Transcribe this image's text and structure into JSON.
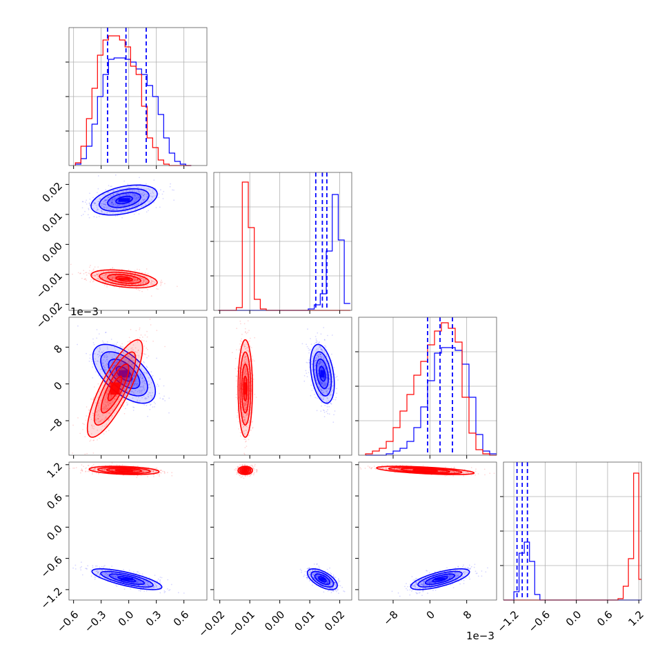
{
  "chart_data": {
    "type": "corner",
    "grid": true,
    "series": [
      {
        "color": "#0000ff"
      },
      {
        "color": "#ff0000"
      }
    ],
    "axes": [
      {
        "range": [
          -0.65,
          0.85
        ],
        "ticks": [
          -0.6,
          -0.3,
          0.0,
          0.3,
          0.6
        ],
        "tick_labels": [
          "−0.6",
          "−0.3",
          "0.0",
          "0.3",
          "0.6"
        ],
        "offset_label": ""
      },
      {
        "range": [
          -0.022,
          0.024
        ],
        "ticks": [
          -0.02,
          -0.01,
          0.0,
          0.01,
          0.02
        ],
        "tick_labels": [
          "−0.02",
          "−0.01",
          "0.00",
          "0.01",
          "0.02"
        ],
        "offset_label": ""
      },
      {
        "range": [
          -15.5,
          14.5
        ],
        "ticks": [
          -8,
          0,
          8
        ],
        "tick_labels": [
          "−8",
          "0",
          "8"
        ],
        "offset_label": "1e−3"
      },
      {
        "range": [
          -1.4,
          1.25
        ],
        "ticks": [
          -1.2,
          -0.6,
          0.0,
          0.6,
          1.2
        ],
        "tick_labels": [
          "−1.2",
          "−0.6",
          "0.0",
          "0.6",
          "1.2"
        ],
        "offset_label": ""
      }
    ],
    "quantiles_series0": [
      [
        -0.23,
        -0.03,
        0.19
      ],
      [
        0.012,
        0.0142,
        0.0157
      ],
      [
        -0.5,
        2.2,
        4.9
      ],
      [
        -1.14,
        -1.04,
        -0.94
      ]
    ],
    "marginals": [
      {
        "bins": [
          -0.58,
          -0.52,
          -0.46,
          -0.4,
          -0.34,
          -0.28,
          -0.22,
          -0.16,
          -0.1,
          -0.04,
          0.02,
          0.08,
          0.14,
          0.2,
          0.26,
          0.32,
          0.38,
          0.44,
          0.5,
          0.56,
          0.62,
          0.68
        ],
        "counts": [
          [
            1,
            5,
            14,
            30,
            50,
            66,
            77,
            78,
            78,
            77,
            75,
            70,
            66,
            58,
            50,
            37,
            20,
            9,
            3,
            1,
            0
          ],
          [
            2,
            14,
            34,
            56,
            80,
            91,
            94,
            94,
            91,
            86,
            72,
            66,
            43,
            20,
            13,
            4,
            1,
            0,
            0,
            0,
            0
          ]
        ],
        "ylim": [
          0,
          100
        ]
      },
      {
        "bins": [
          -0.0205,
          -0.0185,
          -0.0165,
          -0.0145,
          -0.0125,
          -0.0105,
          -0.0085,
          -0.0065,
          -0.0045,
          -0.0025,
          -0.0005,
          0.0015,
          0.0035,
          0.0055,
          0.0075,
          0.0095,
          0.0115,
          0.0135,
          0.0155,
          0.0175,
          0.0195,
          0.0215,
          0.0235
        ],
        "counts": [
          [
            0,
            0,
            0,
            0,
            0,
            0,
            0,
            0,
            0,
            0,
            0,
            0,
            0,
            0,
            0,
            1,
            4,
            12,
            43,
            84,
            51,
            5
          ],
          [
            0,
            0,
            0,
            2,
            93,
            60,
            8,
            1,
            0,
            0,
            0,
            0,
            0,
            0,
            0,
            0,
            0,
            0,
            0,
            0,
            0,
            0
          ]
        ],
        "ylim": [
          0,
          100
        ]
      },
      {
        "bins": [
          -14,
          -12.5,
          -11,
          -9.5,
          -8,
          -6.5,
          -5,
          -3.5,
          -2,
          -0.5,
          1,
          2.5,
          4,
          5.5,
          7,
          8.5,
          10,
          11.5,
          13,
          14.5
        ],
        "counts": [
          [
            0,
            0,
            0,
            1,
            3,
            5,
            10,
            20,
            35,
            54,
            74,
            78,
            78,
            76,
            66,
            42,
            15,
            3,
            1
          ],
          [
            1,
            3,
            5,
            10,
            20,
            32,
            44,
            58,
            68,
            80,
            90,
            96,
            92,
            82,
            42,
            16,
            4,
            1,
            0
          ]
        ],
        "ylim": [
          0,
          100
        ]
      },
      {
        "bins": [
          -1.4,
          -1.3,
          -1.2,
          -1.1,
          -1.0,
          -0.9,
          -0.8,
          -0.7,
          -0.6,
          -0.5,
          -0.4,
          -0.3,
          -0.2,
          -0.1,
          0.0,
          0.1,
          0.2,
          0.3,
          0.4,
          0.5,
          0.6,
          0.7,
          0.8,
          0.9,
          1.0,
          1.1,
          1.2,
          1.3
        ],
        "counts": [
          [
            0,
            0,
            6,
            34,
            42,
            28,
            4,
            0,
            0,
            0,
            0,
            0,
            0,
            0,
            0,
            0,
            0,
            0,
            0,
            0,
            0,
            0,
            0,
            0,
            0,
            0,
            0
          ],
          [
            0,
            0,
            0,
            0,
            0,
            0,
            0,
            0,
            0,
            0,
            0,
            0,
            0,
            0,
            0,
            0,
            0,
            0,
            0,
            0,
            0,
            0,
            1,
            10,
            30,
            92,
            15
          ]
        ],
        "ylim": [
          0,
          100
        ]
      }
    ],
    "joint_clusters": [
      {
        "x": 0,
        "y": 1,
        "series": 0,
        "mean": [
          -0.05,
          0.0148
        ],
        "sd": [
          0.18,
          0.0025
        ],
        "rho": 0.4
      },
      {
        "x": 0,
        "y": 1,
        "series": 1,
        "mean": [
          -0.05,
          -0.0115
        ],
        "sd": [
          0.18,
          0.0015
        ],
        "rho": -0.4
      },
      {
        "x": 0,
        "y": 2,
        "series": 0,
        "mean": [
          -0.05,
          2.2
        ],
        "sd": [
          0.17,
          3.2
        ],
        "rho": -0.6
      },
      {
        "x": 0,
        "y": 2,
        "series": 1,
        "mean": [
          -0.15,
          -1.0
        ],
        "sd": [
          0.15,
          5.3
        ],
        "rho": 0.82
      },
      {
        "x": 1,
        "y": 2,
        "series": 0,
        "mean": [
          0.0142,
          2.2
        ],
        "sd": [
          0.002,
          3.2
        ],
        "rho": -0.35
      },
      {
        "x": 1,
        "y": 2,
        "series": 1,
        "mean": [
          -0.0115,
          -1.0
        ],
        "sd": [
          0.0012,
          5.3
        ],
        "rho": 0.0
      },
      {
        "x": 0,
        "y": 3,
        "series": 0,
        "mean": [
          -0.02,
          -1.0
        ],
        "sd": [
          0.19,
          0.1
        ],
        "rho": -0.75
      },
      {
        "x": 0,
        "y": 3,
        "series": 1,
        "mean": [
          -0.05,
          1.09
        ],
        "sd": [
          0.19,
          0.04
        ],
        "rho": -0.3
      },
      {
        "x": 1,
        "y": 3,
        "series": 0,
        "mean": [
          0.0142,
          -1.0
        ],
        "sd": [
          0.0025,
          0.1
        ],
        "rho": -0.6
      },
      {
        "x": 1,
        "y": 3,
        "series": 1,
        "mean": [
          -0.0115,
          1.09
        ],
        "sd": [
          0.0012,
          0.04
        ],
        "rho": 0.0
      },
      {
        "x": 2,
        "y": 3,
        "series": 0,
        "mean": [
          2.2,
          -1.0
        ],
        "sd": [
          3.2,
          0.1
        ],
        "rho": 0.7
      },
      {
        "x": 2,
        "y": 3,
        "series": 1,
        "mean": [
          -1.0,
          1.09
        ],
        "sd": [
          5.3,
          0.04
        ],
        "rho": -0.6
      }
    ]
  }
}
